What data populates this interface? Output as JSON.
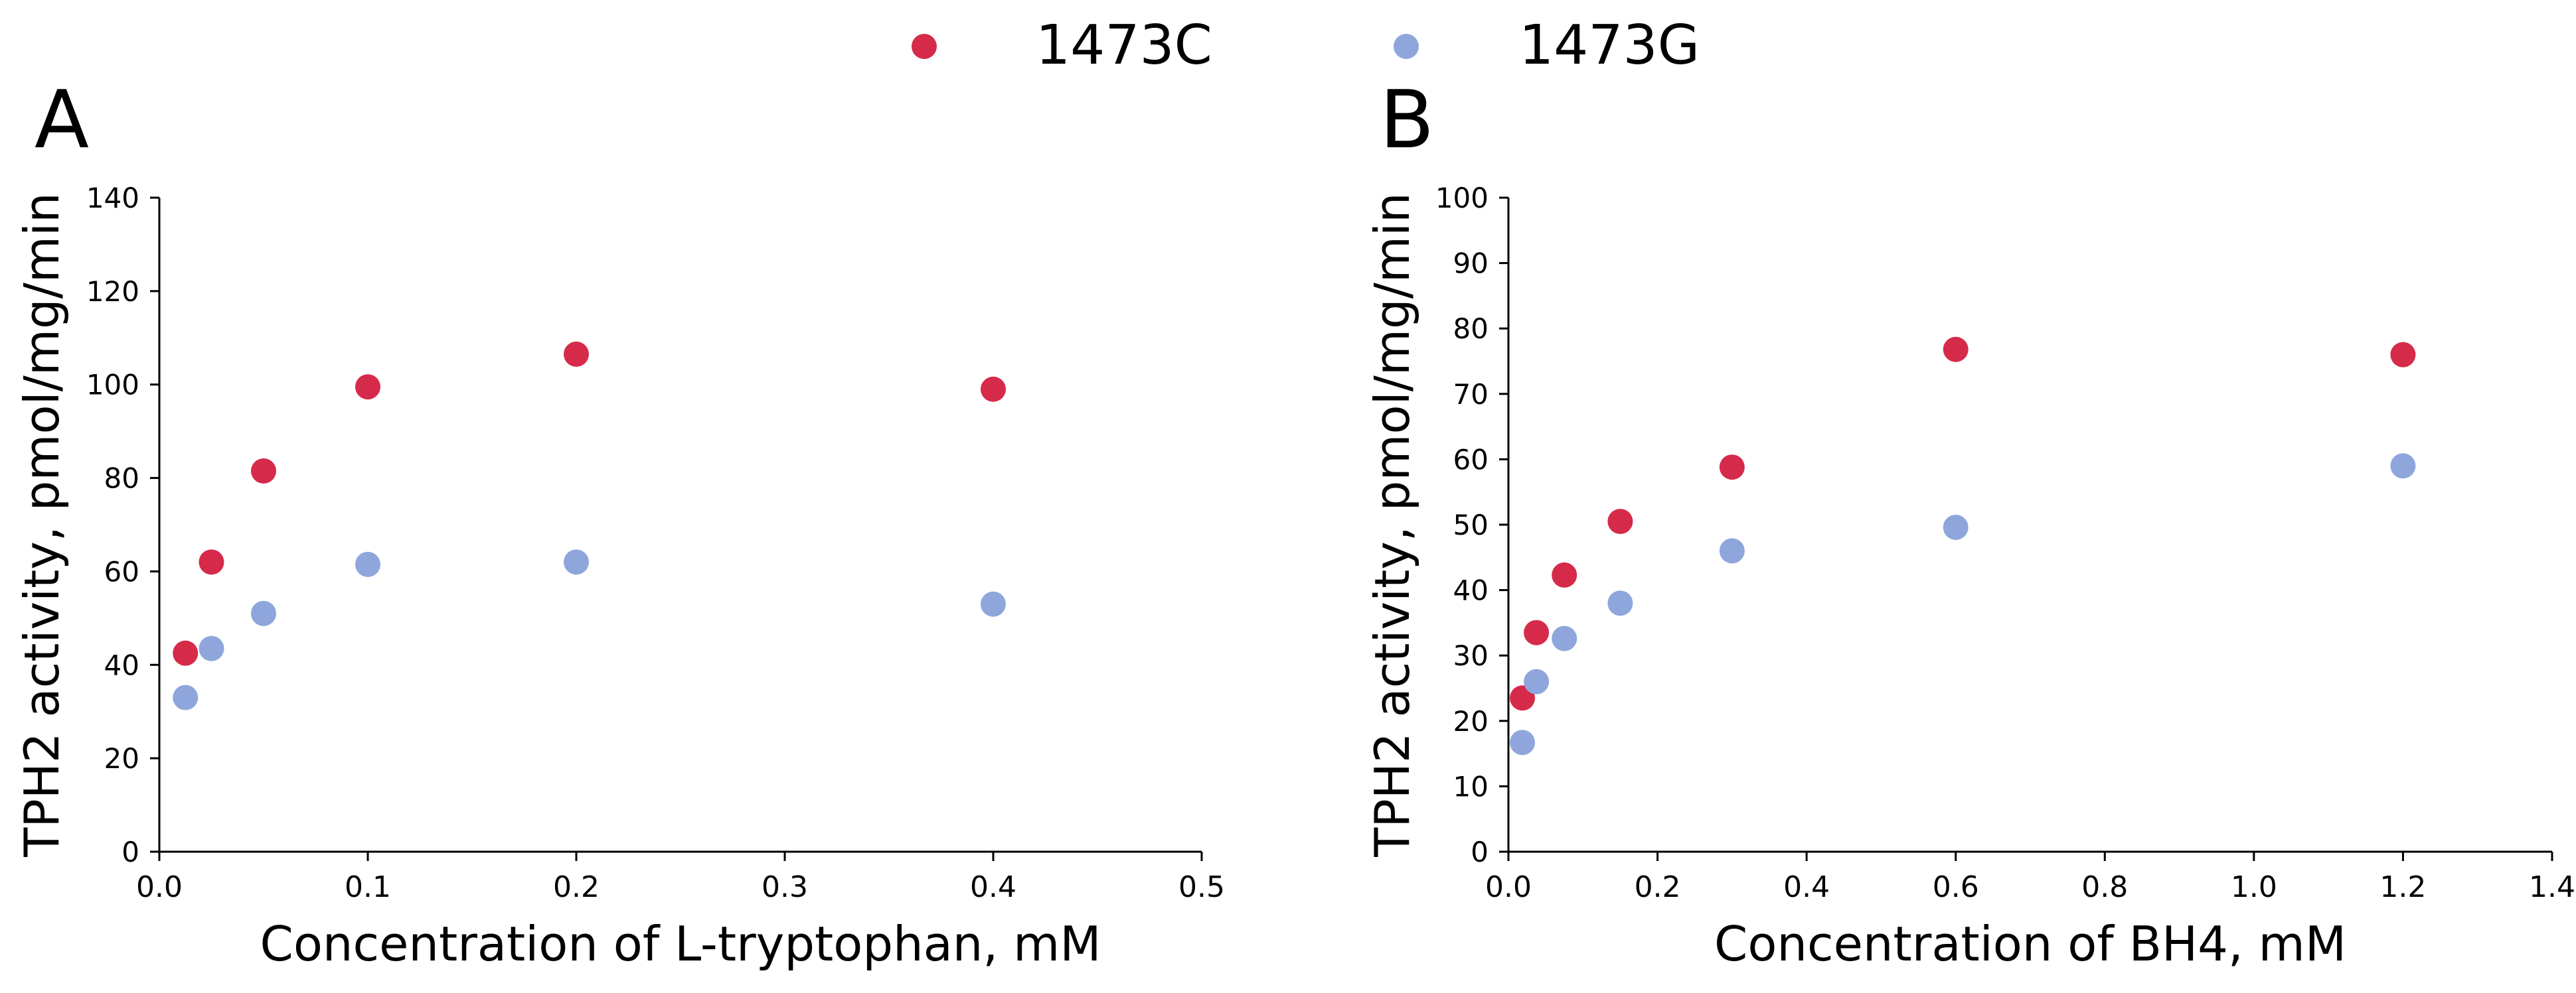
{
  "legend": {
    "placement": "top-center",
    "entries": [
      {
        "label": "1473C",
        "color": "#d62a4a"
      },
      {
        "label": "1473G",
        "color": "#8ea6db"
      }
    ]
  },
  "chart_data": [
    {
      "panel_label": "A",
      "type": "scatter",
      "xlabel": "Concentration of L-tryptophan, mM",
      "ylabel": "TPH2 activity, pmol/mg/min",
      "xlim": [
        0,
        0.5
      ],
      "ylim": [
        0,
        140
      ],
      "xticks": [
        0,
        0.1,
        0.2,
        0.3,
        0.4,
        0.5
      ],
      "xtick_labels": [
        "0.0",
        "0.1",
        "0.2",
        "0.3",
        "0.4",
        "0.5"
      ],
      "yticks": [
        0,
        20,
        40,
        60,
        80,
        100,
        120,
        140
      ],
      "ytick_labels": [
        "0",
        "20",
        "40",
        "60",
        "80",
        "100",
        "120",
        "140"
      ],
      "grid": false,
      "series": [
        {
          "name": "1473C",
          "color": "#d62a4a",
          "x": [
            0.0125,
            0.025,
            0.05,
            0.1,
            0.2,
            0.4
          ],
          "y": [
            42.5,
            62,
            81.5,
            99.5,
            106.5,
            99
          ]
        },
        {
          "name": "1473G",
          "color": "#8ea6db",
          "x": [
            0.0125,
            0.025,
            0.05,
            0.1,
            0.2,
            0.4
          ],
          "y": [
            33,
            43.5,
            51,
            61.5,
            62,
            53
          ]
        }
      ]
    },
    {
      "panel_label": "B",
      "type": "scatter",
      "xlabel": "Concentration of BH4, mM",
      "ylabel": "TPH2 activity, pmol/mg/min",
      "xlim": [
        0,
        1.4
      ],
      "ylim": [
        0,
        100
      ],
      "xticks": [
        0,
        0.2,
        0.4,
        0.6,
        0.8,
        1.0,
        1.2,
        1.4
      ],
      "xtick_labels": [
        "0.0",
        "0.2",
        "0.4",
        "0.6",
        "0.8",
        "1.0",
        "1.2",
        "1.4"
      ],
      "yticks": [
        0,
        10,
        20,
        30,
        40,
        50,
        60,
        70,
        80,
        90,
        100
      ],
      "ytick_labels": [
        "0",
        "10",
        "20",
        "30",
        "40",
        "50",
        "60",
        "70",
        "80",
        "90",
        "100"
      ],
      "grid": false,
      "series": [
        {
          "name": "1473C",
          "color": "#d62a4a",
          "x": [
            0.01875,
            0.0375,
            0.075,
            0.15,
            0.3,
            0.6,
            1.2
          ],
          "y": [
            23.5,
            33.5,
            42.3,
            50.5,
            58.8,
            76.8,
            76
          ]
        },
        {
          "name": "1473G",
          "color": "#8ea6db",
          "x": [
            0.01875,
            0.0375,
            0.075,
            0.15,
            0.3,
            0.6,
            1.2
          ],
          "y": [
            16.7,
            26,
            32.6,
            38,
            46,
            49.6,
            59
          ]
        }
      ]
    }
  ]
}
